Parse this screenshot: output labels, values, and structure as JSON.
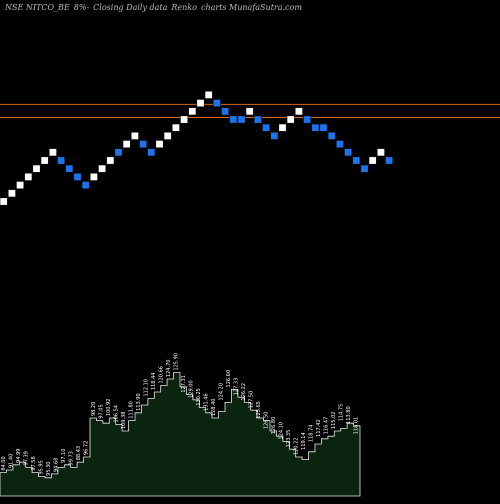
{
  "header": {
    "symbol": "NSE NITCO_BE",
    "change": "8%-",
    "description": "Closing Daily data",
    "chart_kind": "Renko",
    "watermark": "charts MunafaSutra.com"
  },
  "colors": {
    "background": "#000000",
    "up_brick": "#ffffff",
    "down_brick": "#1e73e8",
    "brick_border": "#000000",
    "resistance_line": "#d2691e",
    "volume_fill": "#0b2410",
    "volume_outline": "#e8e8e8",
    "volume_label": "#ffffff"
  },
  "chart_data": {
    "type": "renko",
    "bricks": [
      {
        "dir": "up",
        "level": 0
      },
      {
        "dir": "up",
        "level": 1
      },
      {
        "dir": "up",
        "level": 2
      },
      {
        "dir": "up",
        "level": 3
      },
      {
        "dir": "up",
        "level": 4
      },
      {
        "dir": "up",
        "level": 5
      },
      {
        "dir": "up",
        "level": 6
      },
      {
        "dir": "down",
        "level": 5
      },
      {
        "dir": "down",
        "level": 4
      },
      {
        "dir": "down",
        "level": 3
      },
      {
        "dir": "down",
        "level": 2
      },
      {
        "dir": "up",
        "level": 3
      },
      {
        "dir": "up",
        "level": 4
      },
      {
        "dir": "up",
        "level": 5
      },
      {
        "dir": "down",
        "level": 6
      },
      {
        "dir": "up",
        "level": 7
      },
      {
        "dir": "up",
        "level": 8
      },
      {
        "dir": "down",
        "level": 7
      },
      {
        "dir": "down",
        "level": 6
      },
      {
        "dir": "up",
        "level": 7
      },
      {
        "dir": "up",
        "level": 8
      },
      {
        "dir": "up",
        "level": 9
      },
      {
        "dir": "up",
        "level": 10
      },
      {
        "dir": "up",
        "level": 11
      },
      {
        "dir": "up",
        "level": 12
      },
      {
        "dir": "up",
        "level": 13
      },
      {
        "dir": "down",
        "level": 12
      },
      {
        "dir": "down",
        "level": 11
      },
      {
        "dir": "down",
        "level": 10
      },
      {
        "dir": "down",
        "level": 10
      },
      {
        "dir": "up",
        "level": 11
      },
      {
        "dir": "down",
        "level": 10
      },
      {
        "dir": "down",
        "level": 9
      },
      {
        "dir": "down",
        "level": 8
      },
      {
        "dir": "up",
        "level": 9
      },
      {
        "dir": "up",
        "level": 10
      },
      {
        "dir": "up",
        "level": 11
      },
      {
        "dir": "down",
        "level": 10
      },
      {
        "dir": "down",
        "level": 9
      },
      {
        "dir": "down",
        "level": 9
      },
      {
        "dir": "down",
        "level": 8
      },
      {
        "dir": "down",
        "level": 7
      },
      {
        "dir": "down",
        "level": 6
      },
      {
        "dir": "down",
        "level": 5
      },
      {
        "dir": "down",
        "level": 4
      },
      {
        "dir": "up",
        "level": 5
      },
      {
        "dir": "up",
        "level": 6
      },
      {
        "dir": "down",
        "level": 5
      }
    ],
    "resistance_levels": [
      12.4,
      10.8
    ],
    "volume_labels": [
      "84.00",
      "91.40",
      "94.99",
      "97.39",
      "97.58",
      "95.95",
      "95.30",
      "94.68",
      "97.10",
      "99.73",
      "88.43",
      "96.72",
      "98.20",
      "97.05",
      "100.92",
      "106.54",
      "109.38",
      "111.80",
      "113.90",
      "112.10",
      "118.44",
      "120.66",
      "124.70",
      "125.90",
      "127.31",
      "129.00",
      "130.25",
      "131.46",
      "128.40",
      "124.20",
      "126.60",
      "127.33",
      "126.22",
      "127.50",
      "125.65",
      "126.50",
      "126.80",
      "124.10",
      "123.35",
      "120.22",
      "119.14",
      "118.74",
      "117.42",
      "116.47",
      "115.02",
      "114.75",
      "113.80",
      "116.01"
    ],
    "volume_heights": [
      0.18,
      0.2,
      0.24,
      0.26,
      0.22,
      0.18,
      0.15,
      0.14,
      0.17,
      0.22,
      0.24,
      0.22,
      0.26,
      0.3,
      0.6,
      0.58,
      0.56,
      0.6,
      0.55,
      0.5,
      0.58,
      0.64,
      0.7,
      0.75,
      0.8,
      0.85,
      0.9,
      0.95,
      0.84,
      0.78,
      0.74,
      0.68,
      0.64,
      0.6,
      0.65,
      0.72,
      0.82,
      0.76,
      0.72,
      0.66,
      0.6,
      0.58,
      0.5,
      0.46,
      0.42,
      0.36,
      0.3,
      0.28,
      0.34,
      0.4,
      0.44,
      0.46,
      0.5,
      0.52,
      0.56,
      0.54,
      0.46
    ]
  }
}
